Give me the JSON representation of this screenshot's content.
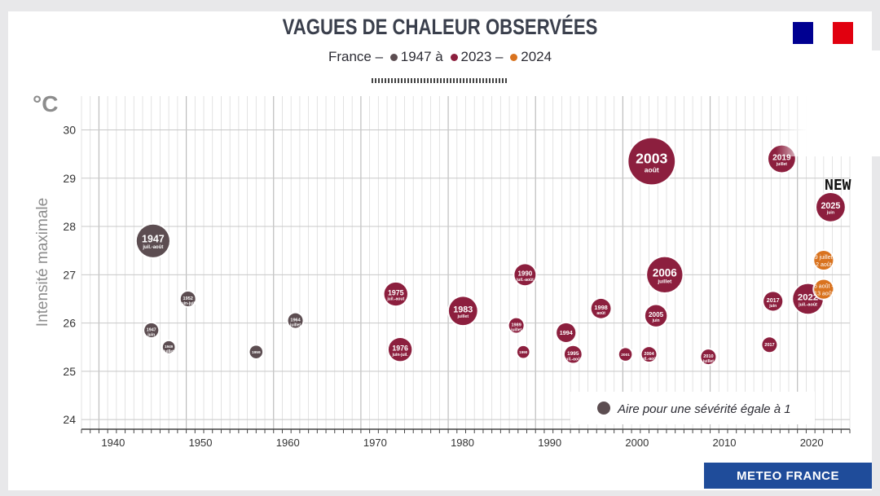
{
  "header": {
    "title": "VAGUES DE CHALEUR OBSERVÉES",
    "subtitle_prefix": "France –",
    "subtitle_range_a": "1947 à",
    "subtitle_range_b": "2023 –",
    "subtitle_range_c": "2024"
  },
  "branding": {
    "logo_text": "METEO FRANCE",
    "new_badge": "NEW",
    "flag_colors": [
      "#000091",
      "#ffffff",
      "#e1000f"
    ]
  },
  "colors": {
    "historic": "#5c4d51",
    "recent": "#8c1f3e",
    "year_2024": "#d9731f",
    "grid": "#d4d4d4"
  },
  "chart_data": {
    "type": "scatter",
    "title": "VAGUES DE CHALEUR OBSERVÉES",
    "subtitle": "France – 1947 à 2023 – 2024",
    "xlabel": "",
    "ylabel": "Intensité maximale",
    "yunit": "°C",
    "xlim": [
      1938,
      2026
    ],
    "ylim": [
      23.8,
      30.7
    ],
    "xticks": [
      1940,
      1950,
      1960,
      1970,
      1980,
      1990,
      2000,
      2010,
      2020
    ],
    "yticks": [
      24,
      25,
      26,
      27,
      28,
      29,
      30
    ],
    "size_legend": "Aire pour une sévérité égale à 1",
    "points": [
      {
        "label": "1947",
        "sub": "juil.-août",
        "x": 1946.2,
        "y": 27.7,
        "severity": 6.0,
        "series": "historic"
      },
      {
        "label": "1947",
        "sub": "juin",
        "x": 1946.0,
        "y": 25.85,
        "severity": 1.1,
        "series": "historic"
      },
      {
        "label": "1949",
        "sub": "juillet",
        "x": 1948.0,
        "y": 25.5,
        "severity": 0.8,
        "series": "historic"
      },
      {
        "label": "1952",
        "sub": "juin-juil.",
        "x": 1950.2,
        "y": 26.5,
        "severity": 1.2,
        "series": "historic"
      },
      {
        "label": "1959",
        "sub": "",
        "x": 1958.0,
        "y": 25.4,
        "severity": 0.9,
        "series": "historic"
      },
      {
        "label": "1964",
        "sub": "juillet",
        "x": 1962.5,
        "y": 26.05,
        "severity": 1.2,
        "series": "historic"
      },
      {
        "label": "1975",
        "sub": "juil.-aout",
        "x": 1974.0,
        "y": 26.6,
        "severity": 3.0,
        "series": "recent"
      },
      {
        "label": "1976",
        "sub": "juin-juil.",
        "x": 1974.5,
        "y": 25.45,
        "severity": 3.0,
        "series": "recent"
      },
      {
        "label": "1983",
        "sub": "juillet",
        "x": 1981.7,
        "y": 26.25,
        "severity": 4.5,
        "series": "recent"
      },
      {
        "label": "1990",
        "sub": "juil.-août",
        "x": 1988.8,
        "y": 27.0,
        "severity": 2.5,
        "series": "recent"
      },
      {
        "label": "1989",
        "sub": "juillet",
        "x": 1987.8,
        "y": 25.95,
        "severity": 1.2,
        "series": "recent"
      },
      {
        "label": "1990",
        "sub": "",
        "x": 1988.6,
        "y": 25.4,
        "severity": 0.8,
        "series": "recent"
      },
      {
        "label": "1994",
        "sub": "",
        "x": 1993.5,
        "y": 25.8,
        "severity": 2.0,
        "series": "recent"
      },
      {
        "label": "1995",
        "sub": "juil.-août",
        "x": 1994.3,
        "y": 25.35,
        "severity": 1.6,
        "series": "recent"
      },
      {
        "label": "1998",
        "sub": "août",
        "x": 1997.5,
        "y": 26.3,
        "severity": 2.1,
        "series": "recent"
      },
      {
        "label": "2003",
        "sub": "août",
        "x": 2003.3,
        "y": 29.35,
        "severity": 12.0,
        "series": "recent"
      },
      {
        "label": "2006",
        "sub": "juillet",
        "x": 2004.8,
        "y": 27.0,
        "severity": 7.0,
        "series": "recent"
      },
      {
        "label": "2005",
        "sub": "juin",
        "x": 2003.8,
        "y": 26.15,
        "severity": 2.6,
        "series": "recent"
      },
      {
        "label": "2004",
        "sub": "juil.-août",
        "x": 2003.0,
        "y": 25.35,
        "severity": 1.2,
        "series": "recent"
      },
      {
        "label": "2001",
        "sub": "",
        "x": 2000.3,
        "y": 25.35,
        "severity": 0.9,
        "series": "recent"
      },
      {
        "label": "2010",
        "sub": "juillet",
        "x": 2009.8,
        "y": 25.3,
        "severity": 1.2,
        "series": "recent"
      },
      {
        "label": "2017",
        "sub": "",
        "x": 2016.8,
        "y": 25.55,
        "severity": 1.2,
        "series": "recent"
      },
      {
        "label": "2017",
        "sub": "juin",
        "x": 2017.2,
        "y": 26.45,
        "severity": 2.0,
        "series": "recent"
      },
      {
        "label": "2019",
        "sub": "juillet",
        "x": 2018.2,
        "y": 29.4,
        "severity": 4.0,
        "series": "recent"
      },
      {
        "label": "2025",
        "sub": "juin",
        "x": 2023.8,
        "y": 28.4,
        "severity": 4.5,
        "series": "recent"
      },
      {
        "label": "2022",
        "sub": "juil.-août",
        "x": 2021.2,
        "y": 26.5,
        "severity": 5.0,
        "series": "recent"
      },
      {
        "label": "29 juillet - 2 août",
        "sub": "",
        "x": 2023.0,
        "y": 27.3,
        "severity": 2.0,
        "series": "year_2024"
      },
      {
        "label": "6 août - 13 août",
        "sub": "",
        "x": 2023.0,
        "y": 26.7,
        "severity": 2.0,
        "series": "year_2024"
      }
    ]
  }
}
